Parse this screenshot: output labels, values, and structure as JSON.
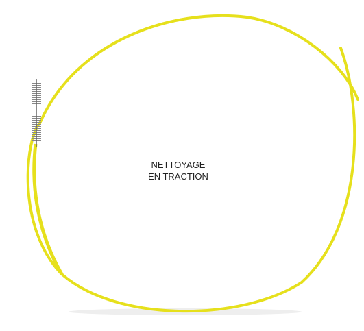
{
  "label": {
    "line1": "NETTOYAGE",
    "line2": "EN TRACTION"
  }
}
